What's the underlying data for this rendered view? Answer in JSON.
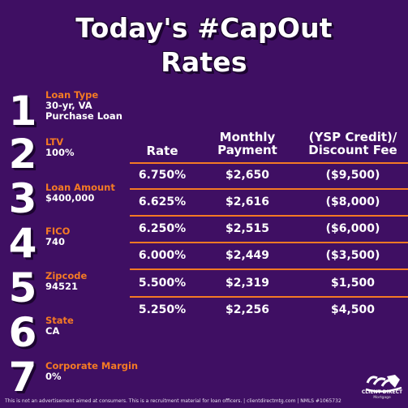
{
  "title_line1": "Today's #CapOut",
  "title_line2": "Rates",
  "steps": [
    {
      "num": "1",
      "label": "Loan Type",
      "value": "30-yr, VA Purchase Loan"
    },
    {
      "num": "2",
      "label": "LTV",
      "value": "100%"
    },
    {
      "num": "3",
      "label": "Loan Amount",
      "value": "$400,000"
    },
    {
      "num": "4",
      "label": "FICO",
      "value": "740"
    },
    {
      "num": "5",
      "label": "Zipcode",
      "value": "94521"
    },
    {
      "num": "6",
      "label": "State",
      "value": "CA"
    },
    {
      "num": "7",
      "label": "Corporate Margin",
      "value": "0%"
    }
  ],
  "table": {
    "headers": {
      "rate": "Rate",
      "payment": "Monthly Payment",
      "fee": "(YSP Credit)/ Discount Fee"
    },
    "rows": [
      {
        "rate": "6.750%",
        "payment": "$2,650",
        "fee": "($9,500)"
      },
      {
        "rate": "6.625%",
        "payment": "$2,616",
        "fee": "($8,000)"
      },
      {
        "rate": "6.250%",
        "payment": "$2,515",
        "fee": "($6,000)"
      },
      {
        "rate": "6.000%",
        "payment": "$2,449",
        "fee": "($3,500)"
      },
      {
        "rate": "5.500%",
        "payment": "$2,319",
        "fee": "$1,500"
      },
      {
        "rate": "5.250%",
        "payment": "$2,256",
        "fee": "$4,500"
      }
    ]
  },
  "logo": {
    "name": "CLIENT DIRECT",
    "sub": "Mortgage"
  },
  "disclaimer": "This is not an advertisement aimed at consumers. This is a recruitment material for loan officers. | clientdirectmtg.com | NMLS #1065732",
  "colors": {
    "background": "#3f0f63",
    "accent": "#f47a24",
    "text": "#ffffff"
  }
}
